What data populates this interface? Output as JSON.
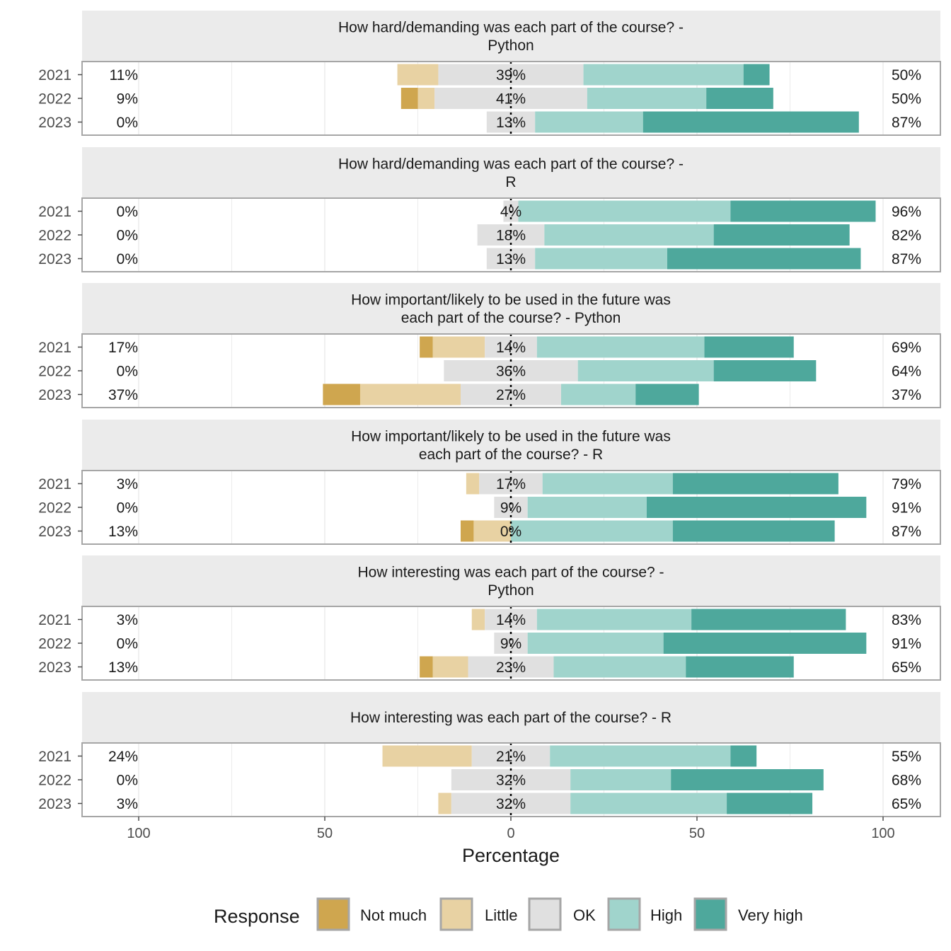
{
  "chart_data": {
    "type": "bar",
    "xlabel": "Percentage",
    "xlim": [
      -100,
      100
    ],
    "xticks": [
      {
        "value": -100,
        "label": "100"
      },
      {
        "value": -50,
        "label": "50"
      },
      {
        "value": 0,
        "label": "0"
      },
      {
        "value": 50,
        "label": "50"
      },
      {
        "value": 100,
        "label": "100"
      }
    ],
    "legend": {
      "title": "Response",
      "placement": "bottom",
      "entries": [
        {
          "label": "Not much",
          "color": "#cfa64f"
        },
        {
          "label": "Little",
          "color": "#e8d2a3"
        },
        {
          "label": "OK",
          "color": "#e0e0e0"
        },
        {
          "label": "High",
          "color": "#a0d4cc"
        },
        {
          "label": "Very high",
          "color": "#4ea89c"
        }
      ]
    },
    "panels": [
      {
        "title_lines": [
          "How hard/demanding was each part of the course? -",
          "Python"
        ],
        "rows": [
          {
            "year": "2021",
            "values": [
              0,
              11,
              39,
              43,
              7
            ],
            "left_label": "11%",
            "mid_label": "39%",
            "right_label": "50%"
          },
          {
            "year": "2022",
            "values": [
              4.5,
              4.5,
              41,
              32,
              18
            ],
            "left_label": "9%",
            "mid_label": "41%",
            "right_label": "50%"
          },
          {
            "year": "2023",
            "values": [
              0,
              0,
              13,
              29,
              58
            ],
            "left_label": "0%",
            "mid_label": "13%",
            "right_label": "87%"
          }
        ]
      },
      {
        "title_lines": [
          "How hard/demanding was each part of the course? -",
          "R"
        ],
        "rows": [
          {
            "year": "2021",
            "values": [
              0,
              0,
              4,
              57,
              39
            ],
            "left_label": "0%",
            "mid_label": "4%",
            "right_label": "96%"
          },
          {
            "year": "2022",
            "values": [
              0,
              0,
              18,
              45.5,
              36.5
            ],
            "left_label": "0%",
            "mid_label": "18%",
            "right_label": "82%"
          },
          {
            "year": "2023",
            "values": [
              0,
              0,
              13,
              35.5,
              52
            ],
            "left_label": "0%",
            "mid_label": "13%",
            "right_label": "87%"
          }
        ]
      },
      {
        "title_lines": [
          "How important/likely to be used in the future was",
          "each part of the course? - Python"
        ],
        "rows": [
          {
            "year": "2021",
            "values": [
              3.5,
              14,
              14,
              45,
              24
            ],
            "left_label": "17%",
            "mid_label": "14%",
            "right_label": "69%"
          },
          {
            "year": "2022",
            "values": [
              0,
              0,
              36,
              36.5,
              27.5
            ],
            "left_label": "0%",
            "mid_label": "36%",
            "right_label": "64%"
          },
          {
            "year": "2023",
            "values": [
              10,
              27,
              27,
              20,
              17
            ],
            "left_label": "37%",
            "mid_label": "27%",
            "right_label": "37%"
          }
        ]
      },
      {
        "title_lines": [
          "How important/likely to be used in the future was",
          "each part of the course? - R"
        ],
        "rows": [
          {
            "year": "2021",
            "values": [
              0,
              3.5,
              17,
              35,
              44.5
            ],
            "left_label": "3%",
            "mid_label": "17%",
            "right_label": "79%"
          },
          {
            "year": "2022",
            "values": [
              0,
              0,
              9,
              32,
              59
            ],
            "left_label": "0%",
            "mid_label": "9%",
            "right_label": "91%"
          },
          {
            "year": "2023",
            "values": [
              3.5,
              10,
              0,
              43.5,
              43.5
            ],
            "left_label": "13%",
            "mid_label": "0%",
            "right_label": "87%"
          }
        ]
      },
      {
        "title_lines": [
          "How interesting was each part of the course? -",
          "Python"
        ],
        "rows": [
          {
            "year": "2021",
            "values": [
              0,
              3.5,
              14,
              41.5,
              41.5
            ],
            "left_label": "3%",
            "mid_label": "14%",
            "right_label": "83%"
          },
          {
            "year": "2022",
            "values": [
              0,
              0,
              9,
              36.5,
              54.5
            ],
            "left_label": "0%",
            "mid_label": "9%",
            "right_label": "91%"
          },
          {
            "year": "2023",
            "values": [
              3.5,
              9.5,
              23,
              35.5,
              29
            ],
            "left_label": "13%",
            "mid_label": "23%",
            "right_label": "65%"
          }
        ]
      },
      {
        "title_lines": [
          "How interesting was each part of the course? - R"
        ],
        "rows": [
          {
            "year": "2021",
            "values": [
              0,
              24,
              21,
              48.5,
              7
            ],
            "left_label": "24%",
            "mid_label": "21%",
            "right_label": "55%"
          },
          {
            "year": "2022",
            "values": [
              0,
              0,
              32,
              27,
              41
            ],
            "left_label": "0%",
            "mid_label": "32%",
            "right_label": "68%"
          },
          {
            "year": "2023",
            "values": [
              0,
              3.5,
              32,
              42,
              23
            ],
            "left_label": "3%",
            "mid_label": "32%",
            "right_label": "65%"
          }
        ]
      }
    ]
  }
}
